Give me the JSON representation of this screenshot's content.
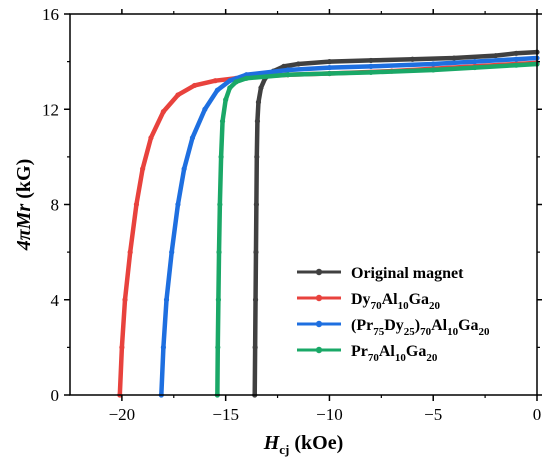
{
  "chart_data": {
    "type": "line",
    "xlabel": {
      "main": "H",
      "sub": "cj",
      "unit": " (kOe)"
    },
    "ylabel": {
      "main": "4πMr",
      "unit": " (kG)"
    },
    "xlim": [
      -22.5,
      0
    ],
    "ylim": [
      0,
      16
    ],
    "xticks": [
      -20,
      -15,
      -10,
      -5,
      0
    ],
    "xtick_labels": [
      "−20",
      "−15",
      "−10",
      "−5",
      "0"
    ],
    "yticks": [
      0,
      4,
      8,
      12,
      16
    ],
    "ytick_labels": [
      "0",
      "4",
      "8",
      "12",
      "16"
    ],
    "minor_xticks": [
      -17.5,
      -12.5,
      -7.5,
      -2.5
    ],
    "minor_yticks": [
      2,
      6,
      10,
      14
    ],
    "grid": false,
    "legend_position": "bottom-right",
    "series": [
      {
        "name": "Original magnet",
        "legend_parts": [
          [
            "Original magnet",
            ""
          ]
        ],
        "color": "#404040",
        "points": [
          [
            -13.6,
            0
          ],
          [
            -13.58,
            2
          ],
          [
            -13.56,
            4
          ],
          [
            -13.54,
            6
          ],
          [
            -13.52,
            8
          ],
          [
            -13.5,
            10
          ],
          [
            -13.47,
            11.5
          ],
          [
            -13.42,
            12.3
          ],
          [
            -13.3,
            12.9
          ],
          [
            -13.1,
            13.3
          ],
          [
            -12.7,
            13.6
          ],
          [
            -12.2,
            13.8
          ],
          [
            -11.5,
            13.9
          ],
          [
            -10.0,
            14.0
          ],
          [
            -8.0,
            14.05
          ],
          [
            -6.0,
            14.1
          ],
          [
            -4.0,
            14.15
          ],
          [
            -2.0,
            14.25
          ],
          [
            -1.0,
            14.35
          ],
          [
            0,
            14.4
          ]
        ]
      },
      {
        "name": "Dy70Al10Ga20",
        "legend_parts": [
          [
            "Dy",
            "70"
          ],
          [
            "Al",
            "10"
          ],
          [
            "Ga",
            "20"
          ]
        ],
        "color": "#e8423d",
        "points": [
          [
            -20.1,
            0
          ],
          [
            -20.0,
            2
          ],
          [
            -19.85,
            4
          ],
          [
            -19.6,
            6
          ],
          [
            -19.3,
            8
          ],
          [
            -19.0,
            9.5
          ],
          [
            -18.6,
            10.8
          ],
          [
            -18.0,
            11.9
          ],
          [
            -17.3,
            12.6
          ],
          [
            -16.5,
            13.0
          ],
          [
            -15.5,
            13.2
          ],
          [
            -14.5,
            13.3
          ],
          [
            -12.0,
            13.45
          ],
          [
            -10.0,
            13.5
          ],
          [
            -7.0,
            13.6
          ],
          [
            -5.0,
            13.7
          ],
          [
            -3.0,
            13.8
          ],
          [
            -1.0,
            13.9
          ],
          [
            0,
            13.95
          ]
        ]
      },
      {
        "name": "(Pr75Dy25)70Al10Ga20",
        "legend_parts": [
          [
            "(Pr",
            "75"
          ],
          [
            "Dy",
            "25"
          ],
          [
            ")",
            "70"
          ],
          [
            "Al",
            "10"
          ],
          [
            "Ga",
            "20"
          ]
        ],
        "color": "#1e6fe0",
        "points": [
          [
            -18.1,
            0
          ],
          [
            -18.0,
            2
          ],
          [
            -17.85,
            4
          ],
          [
            -17.6,
            6
          ],
          [
            -17.3,
            8
          ],
          [
            -17.0,
            9.5
          ],
          [
            -16.6,
            10.8
          ],
          [
            -16.0,
            12.0
          ],
          [
            -15.4,
            12.8
          ],
          [
            -14.8,
            13.2
          ],
          [
            -14.0,
            13.45
          ],
          [
            -12.0,
            13.65
          ],
          [
            -10.0,
            13.75
          ],
          [
            -8.0,
            13.8
          ],
          [
            -5.0,
            13.9
          ],
          [
            -3.0,
            14.0
          ],
          [
            -1.0,
            14.1
          ],
          [
            0,
            14.15
          ]
        ]
      },
      {
        "name": "Pr70Al10Ga20",
        "legend_parts": [
          [
            "Pr",
            "70"
          ],
          [
            "Al",
            "10"
          ],
          [
            "Ga",
            "20"
          ]
        ],
        "color": "#1aa867",
        "points": [
          [
            -15.4,
            0
          ],
          [
            -15.38,
            2
          ],
          [
            -15.35,
            4
          ],
          [
            -15.32,
            6
          ],
          [
            -15.28,
            8
          ],
          [
            -15.22,
            10
          ],
          [
            -15.15,
            11.5
          ],
          [
            -15.0,
            12.4
          ],
          [
            -14.8,
            12.9
          ],
          [
            -14.5,
            13.15
          ],
          [
            -14.0,
            13.3
          ],
          [
            -12.0,
            13.45
          ],
          [
            -10.0,
            13.5
          ],
          [
            -8.0,
            13.55
          ],
          [
            -5.0,
            13.65
          ],
          [
            -3.0,
            13.75
          ],
          [
            -1.0,
            13.85
          ],
          [
            0,
            13.9
          ]
        ]
      }
    ]
  }
}
